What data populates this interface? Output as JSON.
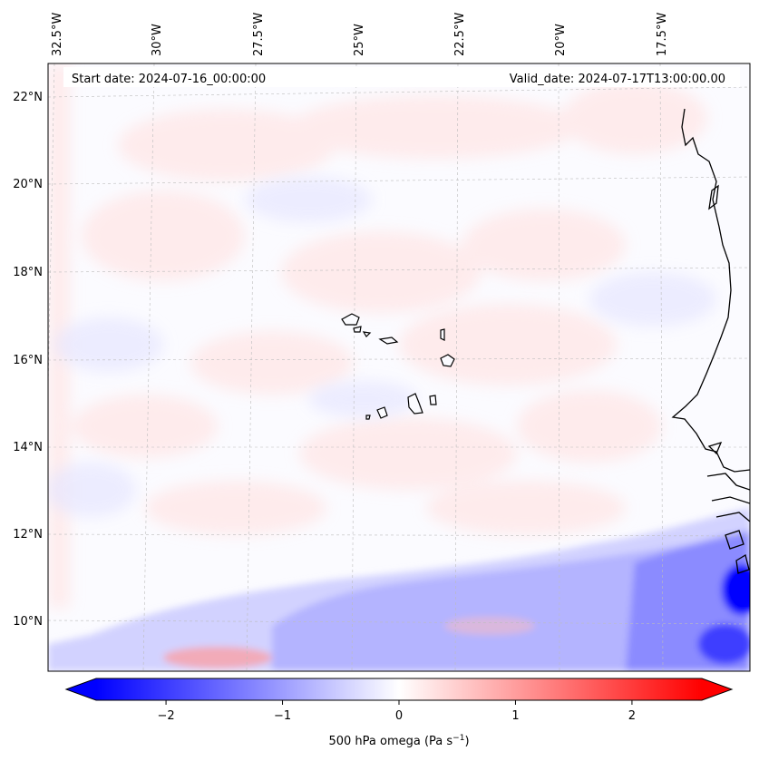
{
  "map": {
    "start_date_text": "Start date: 2024-07-16_00:00:00",
    "valid_date_text": "Valid_date: 2024-07-17T13:00:00.00",
    "lon_labels": [
      "32.5°W",
      "30°W",
      "27.5°W",
      "25°W",
      "22.5°W",
      "20°W",
      "17.5°W"
    ],
    "lat_labels": [
      "22°N",
      "20°N",
      "18°N",
      "16°N",
      "14°N",
      "12°N",
      "10°N"
    ],
    "field": "500 hPa omega",
    "region": "Cabo Verde / West African coast"
  },
  "colorbar": {
    "label": "500 hPa omega (Pa s",
    "label_sup": "−1",
    "label_close": ")",
    "ticks": [
      "−2",
      "−1",
      "0",
      "1",
      "2"
    ],
    "tick_values": [
      -2,
      -1,
      0,
      1,
      2
    ],
    "range": [
      -2.6,
      2.6
    ],
    "cmap": "bwr",
    "colors": {
      "min": "#0000ff",
      "mid": "#ffffff",
      "max": "#ff0000"
    }
  }
}
